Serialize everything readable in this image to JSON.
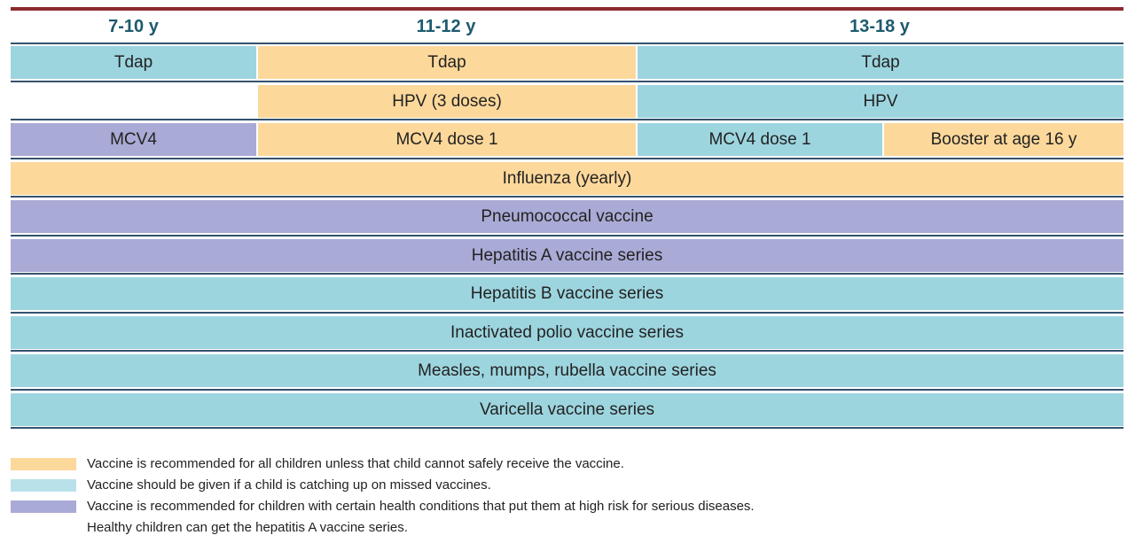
{
  "headers": [
    "7-10 y",
    "11-12 y",
    "13-18 y"
  ],
  "rows": [
    {
      "cells": [
        {
          "label": "Tdap",
          "color": "#9dd5df"
        },
        {
          "label": "Tdap",
          "color": "#fdd89b"
        },
        {
          "label": "Tdap",
          "color": "#9dd5df"
        }
      ]
    },
    {
      "cells": [
        {
          "label": "HPV (3 doses)",
          "color": "#fdd89b"
        },
        {
          "label": "HPV",
          "color": "#9dd5df"
        }
      ]
    },
    {
      "cells": [
        {
          "label": "MCV4",
          "color": "#aaaad6"
        },
        {
          "label": "MCV4 dose 1",
          "color": "#fdd89b"
        },
        {
          "label": "MCV4 dose 1",
          "color": "#9dd5df"
        },
        {
          "label": "Booster at age 16 y",
          "color": "#fdd89b"
        }
      ]
    },
    {
      "cells": [
        {
          "label": "Influenza (yearly)",
          "color": "#fdd89b"
        }
      ]
    },
    {
      "cells": [
        {
          "label": "Pneumococcal vaccine",
          "color": "#aaaad6"
        }
      ]
    },
    {
      "cells": [
        {
          "label": "Hepatitis A vaccine series",
          "color": "#aaaad6"
        }
      ]
    },
    {
      "cells": [
        {
          "label": "Hepatitis B vaccine series",
          "color": "#9dd5df"
        }
      ]
    },
    {
      "cells": [
        {
          "label": "Inactivated polio vaccine series",
          "color": "#9dd5df"
        }
      ]
    },
    {
      "cells": [
        {
          "label": "Measles, mumps, rubella vaccine series",
          "color": "#9dd5df"
        }
      ]
    },
    {
      "cells": [
        {
          "label": "Varicella vaccine series",
          "color": "#9dd5df"
        }
      ]
    }
  ],
  "legend": [
    {
      "color": "#fdd89b",
      "lines": [
        "Vaccine is recommended for all children unless that child cannot safely receive the vaccine."
      ]
    },
    {
      "color": "#b9e1ea",
      "lines": [
        "Vaccine should be given if a child is catching up on missed vaccines."
      ]
    },
    {
      "color": "#aaaad6",
      "lines": [
        "Vaccine is recommended for children with certain health conditions that put them at high risk for serious diseases.",
        "Healthy children can get the hepatitis A vaccine series."
      ]
    }
  ]
}
